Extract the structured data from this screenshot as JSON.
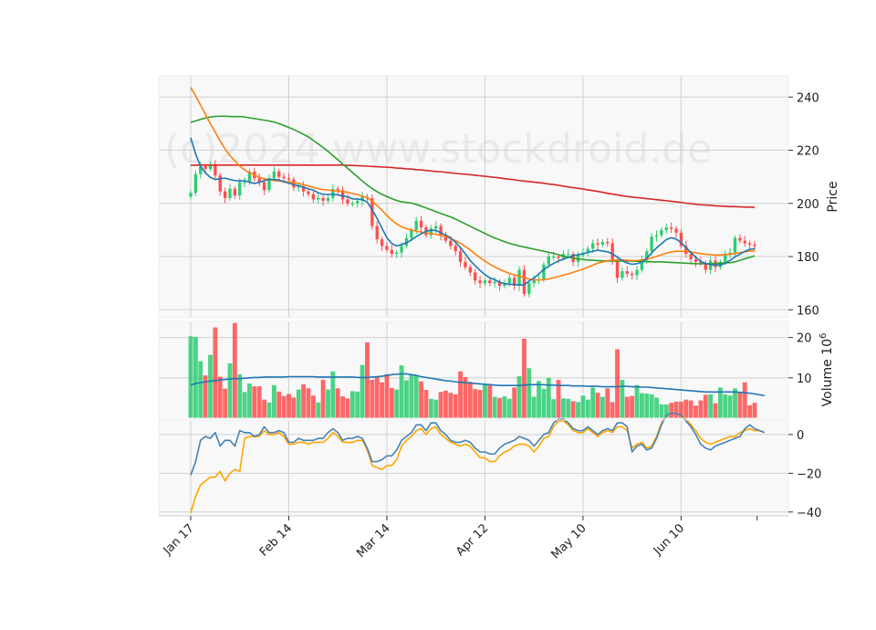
{
  "watermark": "(c)2024 www.stockdroid.de",
  "colors": {
    "up": "#2ecc71",
    "down": "#ff4d4d",
    "ma_short": "#1f77b4",
    "ma_mid": "#ff7f0e",
    "ma_long": "#2ca02c",
    "ma_xlong": "#d62728",
    "volume_ma": "#1f77b4",
    "osc1": "#4682b4",
    "osc2": "#ffa500"
  },
  "chart_data": {
    "type": "candlestick",
    "x_tick_labels": [
      "Jan 17",
      "Feb 14",
      "Mar 14",
      "Apr 12",
      "May 10",
      "Jun 10"
    ],
    "x_tick_index": [
      0,
      20,
      40,
      60,
      80,
      100
    ],
    "panels": {
      "price": {
        "ylabel": "Price",
        "ylim": [
          157,
          248
        ],
        "yticks": [
          160,
          180,
          200,
          220,
          240
        ],
        "close": [
          204.0,
          211.0,
          214.0,
          213.0,
          214.5,
          210.5,
          204.5,
          202.0,
          205.5,
          203.0,
          208.0,
          208.0,
          212.0,
          209.5,
          208.0,
          205.0,
          209.5,
          212.0,
          210.0,
          209.5,
          209.0,
          206.0,
          206.5,
          204.5,
          203.5,
          201.5,
          202.0,
          201.0,
          202.0,
          205.5,
          205.0,
          201.5,
          200.0,
          200.0,
          201.0,
          202.5,
          202.0,
          191.5,
          186.5,
          184.0,
          182.5,
          181.0,
          181.5,
          184.0,
          187.0,
          190.0,
          193.5,
          191.0,
          188.0,
          190.5,
          191.5,
          188.0,
          186.0,
          184.0,
          182.0,
          178.0,
          176.0,
          174.0,
          171.0,
          170.0,
          171.0,
          170.0,
          170.5,
          169.0,
          170.0,
          172.0,
          169.0,
          175.0,
          166.0,
          170.0,
          171.5,
          171.5,
          177.0,
          180.0,
          180.0,
          179.5,
          181.0,
          181.0,
          178.0,
          180.5,
          181.5,
          183.0,
          185.0,
          184.5,
          185.5,
          185.0,
          178.5,
          172.0,
          174.5,
          173.5,
          173.0,
          175.0,
          178.5,
          182.0,
          187.5,
          188.0,
          190.0,
          191.0,
          190.5,
          189.0,
          184.0,
          181.0,
          179.0,
          178.0,
          177.5,
          175.0,
          178.5,
          176.0,
          178.0,
          181.0,
          181.5,
          187.0,
          186.0,
          185.0,
          184.5,
          184.0
        ],
        "moving_averages": {
          "ma_short": [
            224.7,
            218.6,
            214.0,
            211.5,
            209.8,
            209.0,
            209.3,
            209.5,
            209.0,
            208.6,
            208.5,
            208.5,
            208.0,
            207.5,
            207.9,
            208.6,
            209.0,
            209.0,
            208.8,
            208.2,
            207.6,
            207.1,
            206.6,
            206.1,
            205.5,
            205.0,
            204.0,
            203.4,
            203.4,
            203.4,
            203.2,
            202.8,
            202.5,
            201.7,
            201.6,
            201.4,
            200.5,
            197.6,
            194.4,
            190.7,
            187.1,
            184.9,
            184.0,
            184.5,
            185.2,
            186.3,
            187.5,
            188.6,
            189.4,
            190.0,
            189.8,
            189.0,
            188.1,
            187.0,
            185.4,
            183.4,
            181.0,
            178.5,
            176.6,
            174.8,
            173.2,
            172.0,
            171.3,
            170.4,
            169.8,
            169.6,
            169.5,
            169.3,
            169.4,
            170.8,
            171.9,
            173.5,
            175.1,
            176.4,
            177.4,
            178.4,
            179.0,
            179.7,
            180.4,
            180.7,
            181.0,
            181.6,
            182.0,
            182.4,
            182.1,
            181.8,
            181.0,
            179.8,
            178.5,
            177.6,
            177.1,
            177.3,
            178.0,
            179.4,
            181.4,
            183.3,
            184.8,
            186.4,
            187.1,
            186.6,
            185.2,
            183.4,
            181.6,
            179.7,
            178.2,
            177.4,
            177.0,
            176.8,
            176.8,
            177.5,
            178.6,
            179.9,
            180.9,
            182.0,
            182.7,
            183.0
          ],
          "ma_mid": [
            243.6,
            240.5,
            237.0,
            233.5,
            230.0,
            226.8,
            223.5,
            220.5,
            218.0,
            216.0,
            214.0,
            212.6,
            211.5,
            210.6,
            209.9,
            209.3,
            208.9,
            208.6,
            208.4,
            208.2,
            208.1,
            207.9,
            207.5,
            207.0,
            206.6,
            206.0,
            205.5,
            205.2,
            205.0,
            204.8,
            204.6,
            204.4,
            204.2,
            203.7,
            203.3,
            202.7,
            202.1,
            200.8,
            199.2,
            197.4,
            195.5,
            193.7,
            192.3,
            191.2,
            190.5,
            190.0,
            189.6,
            189.2,
            188.9,
            188.6,
            188.4,
            188.0,
            187.5,
            186.8,
            186.0,
            185.0,
            183.8,
            182.5,
            181.0,
            179.6,
            178.3,
            177.1,
            176.1,
            175.2,
            174.4,
            173.7,
            173.1,
            172.6,
            172.0,
            171.6,
            171.3,
            171.2,
            171.3,
            171.6,
            172.0,
            172.5,
            173.0,
            173.5,
            174.1,
            174.7,
            175.3,
            176.0,
            176.8,
            177.5,
            178.0,
            178.4,
            178.6,
            178.7,
            178.7,
            178.6,
            178.5,
            178.5,
            178.7,
            179.0,
            179.5,
            180.1,
            180.7,
            181.3,
            181.7,
            182.0,
            182.0,
            181.9,
            181.7,
            181.4,
            181.1,
            180.9,
            180.7,
            180.6,
            180.6,
            180.7,
            180.9,
            181.2,
            181.5,
            181.8,
            182.0,
            182.1
          ],
          "ma_long": [
            230.5,
            231.0,
            231.6,
            232.1,
            232.5,
            232.7,
            232.8,
            232.8,
            232.7,
            232.6,
            232.7,
            232.5,
            232.2,
            231.9,
            231.6,
            231.3,
            231.0,
            230.6,
            230.0,
            229.3,
            228.6,
            227.8,
            226.9,
            226.0,
            225.0,
            223.7,
            222.4,
            221.0,
            219.6,
            218.0,
            216.4,
            214.8,
            213.2,
            211.6,
            210.0,
            208.4,
            206.9,
            205.6,
            204.4,
            203.4,
            202.6,
            201.8,
            201.1,
            200.6,
            200.4,
            200.1,
            199.6,
            199.0,
            198.3,
            197.6,
            196.9,
            196.2,
            195.6,
            194.9,
            194.1,
            193.2,
            192.3,
            191.4,
            190.5,
            189.6,
            188.7,
            187.8,
            187.0,
            186.3,
            185.6,
            185.0,
            184.5,
            184.0,
            183.6,
            183.2,
            182.8,
            182.4,
            182.0,
            181.6,
            181.2,
            180.7,
            180.2,
            179.8,
            179.4,
            179.1,
            178.9,
            178.7,
            178.6,
            178.5,
            178.4,
            178.3,
            178.3,
            178.3,
            178.3,
            178.3,
            178.3,
            178.2,
            178.2,
            178.1,
            178.0,
            178.0,
            178.0,
            177.9,
            177.8,
            177.7,
            177.6,
            177.5,
            177.4,
            177.3,
            177.3,
            177.3,
            177.3,
            177.4,
            177.5,
            177.6,
            177.7,
            178.0,
            178.6,
            179.2,
            179.7,
            180.3
          ],
          "ma_xlong": [
            214.3,
            214.4,
            214.4,
            214.4,
            214.4,
            214.4,
            214.4,
            214.4,
            214.4,
            214.4,
            214.4,
            214.4,
            214.4,
            214.4,
            214.4,
            214.4,
            214.4,
            214.4,
            214.4,
            214.4,
            214.4,
            214.4,
            214.4,
            214.4,
            214.4,
            214.4,
            214.4,
            214.4,
            214.4,
            214.4,
            214.4,
            214.4,
            214.3,
            214.3,
            214.2,
            214.1,
            214.0,
            213.9,
            213.8,
            213.7,
            213.6,
            213.5,
            213.3,
            213.2,
            213.0,
            212.9,
            212.7,
            212.6,
            212.4,
            212.2,
            212.0,
            211.9,
            211.7,
            211.5,
            211.3,
            211.1,
            211.0,
            210.8,
            210.6,
            210.4,
            210.2,
            210.0,
            209.8,
            209.6,
            209.3,
            209.1,
            208.9,
            208.6,
            208.4,
            208.2,
            208.0,
            207.8,
            207.6,
            207.3,
            207.1,
            206.8,
            206.5,
            206.2,
            205.9,
            205.7,
            205.4,
            205.1,
            204.8,
            204.5,
            204.2,
            203.8,
            203.5,
            203.2,
            202.9,
            202.6,
            202.4,
            202.2,
            202.0,
            201.8,
            201.6,
            201.4,
            201.2,
            201.0,
            200.8,
            200.6,
            200.4,
            200.1,
            199.9,
            199.7,
            199.5,
            199.4,
            199.3,
            199.1,
            199.0,
            198.9,
            198.8,
            198.8,
            198.7,
            198.6,
            198.6,
            198.5
          ]
        }
      },
      "volume": {
        "ylabel": "Volume  10^6",
        "ylim": [
          0,
          24
        ],
        "yticks": [
          10,
          20
        ],
        "volume": [
          20.3,
          20.1,
          14.1,
          10.6,
          15.7,
          22.5,
          10.3,
          7.3,
          13.6,
          23.6,
          10.9,
          6.5,
          8.6,
          7.9,
          7.9,
          4.6,
          3.9,
          8.2,
          6.6,
          5.5,
          6.0,
          5.1,
          7.1,
          8.4,
          7.4,
          5.6,
          3.9,
          9.5,
          7.1,
          11.6,
          7.4,
          5.4,
          4.9,
          6.7,
          6.6,
          13.2,
          18.8,
          9.5,
          10.3,
          8.9,
          10.9,
          7.5,
          7.1,
          13.1,
          9.4,
          10.7,
          10.6,
          9.1,
          7.0,
          4.8,
          4.6,
          6.5,
          6.8,
          6.3,
          5.9,
          11.6,
          10.2,
          9.0,
          7.2,
          7.0,
          8.4,
          8.2,
          5.3,
          5.0,
          5.4,
          4.8,
          7.6,
          10.4,
          19.7,
          12.4,
          5.3,
          9.2,
          7.3,
          10.0,
          4.7,
          9.5,
          4.9,
          4.8,
          4.2,
          4.0,
          5.6,
          4.6,
          7.6,
          6.3,
          5.3,
          7.4,
          4.0,
          17.1,
          9.5,
          5.3,
          5.5,
          8.2,
          6.2,
          6.1,
          5.9,
          5.1,
          3.4,
          3.4,
          3.8,
          4.1,
          4.1,
          4.6,
          4.4,
          3.1,
          4.4,
          5.8,
          5.9,
          3.7,
          7.6,
          5.9,
          5.6,
          7.4,
          6.3,
          8.9,
          3.2,
          3.8,
          1.6,
          9.5
        ],
        "volume_ma": [
          8.2,
          8.6,
          8.8,
          9.0,
          9.2,
          9.3,
          9.5,
          9.6,
          9.7,
          9.8,
          9.8,
          9.9,
          10.0,
          10.1,
          10.1,
          10.2,
          10.2,
          10.2,
          10.2,
          10.2,
          10.3,
          10.3,
          10.3,
          10.3,
          10.3,
          10.3,
          10.2,
          10.2,
          10.2,
          10.2,
          10.2,
          10.2,
          10.2,
          10.2,
          10.1,
          10.1,
          10.1,
          10.2,
          10.3,
          10.4,
          10.6,
          10.8,
          10.9,
          11.0,
          11.0,
          10.8,
          10.6,
          10.3,
          10.1,
          9.9,
          9.7,
          9.5,
          9.3,
          9.2,
          9.0,
          8.9,
          8.8,
          8.7,
          8.6,
          8.5,
          8.4,
          8.3,
          8.2,
          8.1,
          8.1,
          8.1,
          8.1,
          8.1,
          8.2,
          8.3,
          8.3,
          8.3,
          8.3,
          8.2,
          8.2,
          8.1,
          8.1,
          8.1,
          8.0,
          8.0,
          8.0,
          7.9,
          7.9,
          7.9,
          7.8,
          7.8,
          7.8,
          7.8,
          7.9,
          7.9,
          7.8,
          7.8,
          7.7,
          7.7,
          7.6,
          7.5,
          7.4,
          7.3,
          7.2,
          7.1,
          7.0,
          6.9,
          6.8,
          6.7,
          6.6,
          6.5,
          6.5,
          6.5,
          6.5,
          6.5,
          6.5,
          6.5,
          6.4,
          6.3,
          6.2,
          6.0,
          5.8,
          5.6
        ]
      },
      "oscillator": {
        "ylim": [
          -42,
          7.5
        ],
        "yticks": [
          -40,
          -20,
          0
        ],
        "series1": [
          -21.0,
          -14.0,
          -3.0,
          -1.0,
          -2.0,
          1.0,
          -6.0,
          -3.0,
          -3.0,
          -6.0,
          2.0,
          1.0,
          1.0,
          -1.0,
          0.0,
          4.0,
          1.0,
          1.0,
          2.0,
          1.0,
          -4.0,
          -4.0,
          -2.0,
          -3.0,
          -3.0,
          -3.0,
          -2.0,
          -2.0,
          1.0,
          3.0,
          1.0,
          -3.0,
          -2.0,
          -2.0,
          -1.0,
          -2.0,
          -7.0,
          -14.0,
          -14.0,
          -13.0,
          -11.0,
          -11.0,
          -8.0,
          -3.0,
          -1.0,
          1.0,
          5.0,
          5.0,
          2.0,
          6.0,
          6.0,
          2.0,
          0.0,
          -3.0,
          -4.0,
          -4.0,
          -3.0,
          -4.0,
          -7.0,
          -9.0,
          -9.0,
          -10.0,
          -10.0,
          -7.0,
          -5.0,
          -4.0,
          -3.0,
          -1.0,
          -2.0,
          -3.0,
          -6.0,
          -3.0,
          0.0,
          1.0,
          6.0,
          8.0,
          8.0,
          6.0,
          3.0,
          2.0,
          2.0,
          4.0,
          2.0,
          0.0,
          2.0,
          3.0,
          2.0,
          6.0,
          6.0,
          4.0,
          -9.0,
          -6.0,
          -5.0,
          -8.0,
          -7.0,
          -2.0,
          5.0,
          10.0,
          11.0,
          11.0,
          10.0,
          7.0,
          4.0,
          0.0,
          -5.0,
          -7.0,
          -8.0,
          -6.0,
          -5.0,
          -4.0,
          -3.0,
          -2.0,
          -1.0,
          3.0,
          5.0,
          3.0,
          2.0,
          1.0
        ],
        "series2": [
          -40.5,
          -32.0,
          -26.0,
          -24.0,
          -22.0,
          -22.0,
          -19.0,
          -24.0,
          -20.0,
          -18.0,
          -19.0,
          -2.0,
          -1.0,
          -1.0,
          -1.0,
          2.0,
          0.0,
          0.0,
          1.0,
          -1.0,
          -5.0,
          -5.0,
          -4.0,
          -4.0,
          -5.0,
          -4.0,
          -4.0,
          -4.0,
          -2.0,
          1.0,
          -1.0,
          -4.0,
          -4.0,
          -4.0,
          -3.0,
          -3.0,
          -8.0,
          -16.0,
          -17.0,
          -18.0,
          -16.0,
          -16.0,
          -13.0,
          -6.0,
          -3.0,
          -1.0,
          2.0,
          3.0,
          0.0,
          3.0,
          4.0,
          0.0,
          -2.0,
          -4.0,
          -5.0,
          -6.0,
          -5.0,
          -6.0,
          -9.0,
          -12.0,
          -12.0,
          -14.0,
          -14.0,
          -11.0,
          -9.0,
          -8.0,
          -6.0,
          -5.0,
          -5.0,
          -6.0,
          -9.0,
          -6.0,
          -2.0,
          -1.0,
          4.0,
          7.0,
          7.0,
          5.0,
          2.0,
          1.0,
          1.0,
          3.0,
          1.0,
          -1.0,
          1.0,
          2.0,
          1.0,
          4.0,
          4.0,
          2.0,
          -7.0,
          -5.0,
          -4.0,
          -7.0,
          -6.0,
          -1.0,
          6.0,
          10.0,
          11.0,
          11.0,
          10.0,
          8.0,
          5.0,
          2.0,
          -2.0,
          -4.0,
          -5.0,
          -4.0,
          -3.0,
          -2.0,
          -1.0,
          -1.0,
          1.0,
          2.0,
          3.0,
          2.0,
          2.0,
          1.0
        ]
      }
    }
  }
}
